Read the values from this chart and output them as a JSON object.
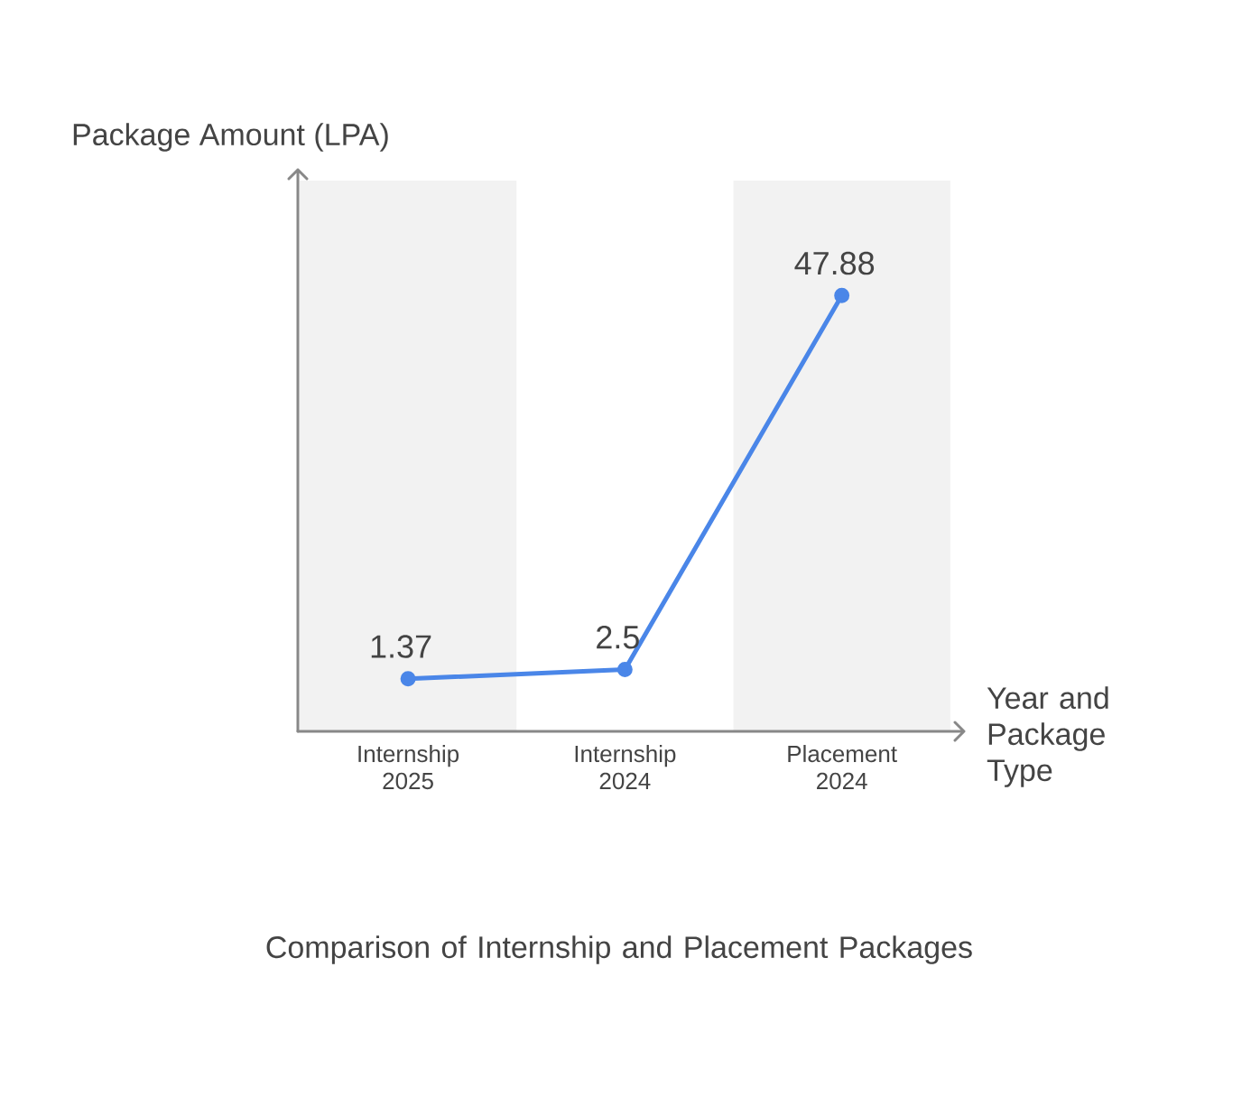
{
  "chart_data": {
    "type": "line",
    "title": "Comparison of Internship and Placement Packages",
    "xlabel": "Year and Package Type",
    "ylabel": "Package Amount (LPA)",
    "categories": [
      "Internship 2025",
      "Internship 2024",
      "Placement 2024"
    ],
    "values": [
      1.37,
      2.5,
      47.88
    ],
    "color": "#4a86e8",
    "marker": "circle",
    "line_style": "solid",
    "data_labels": true
  }
}
